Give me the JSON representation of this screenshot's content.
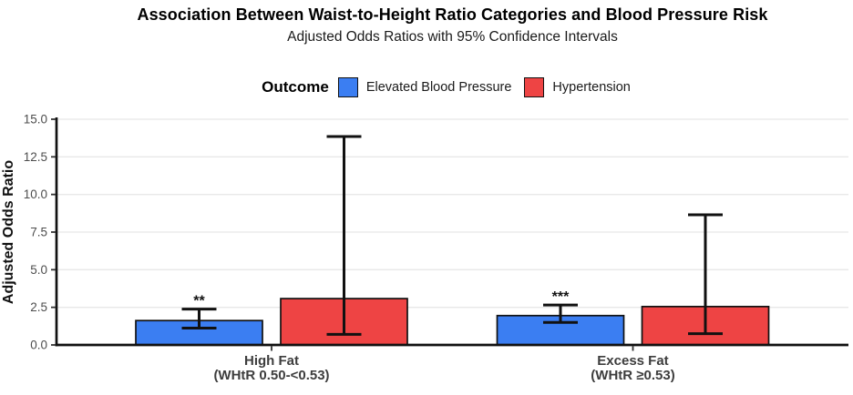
{
  "chart_data": {
    "type": "bar",
    "title": "Association Between Waist-to-Height Ratio Categories and Blood Pressure Risk",
    "subtitle": "Adjusted Odds Ratios with 95% Confidence Intervals",
    "ylabel": "Adjusted Odds Ratio",
    "xlabel": "",
    "ylim": [
      0,
      15
    ],
    "yticks": [
      0,
      2.5,
      5,
      7.5,
      10,
      12.5,
      15
    ],
    "grid": true,
    "legend_title": "Outcome",
    "legend_position": "top",
    "categories": [
      {
        "label": "High Fat",
        "sublabel": "(WHtR 0.50-<0.53)"
      },
      {
        "label": "Excess Fat",
        "sublabel": "(WHtR ≥0.53)"
      }
    ],
    "series": [
      {
        "name": "Elevated Blood Pressure",
        "color": "#3b7ef2",
        "values": [
          1.62,
          1.95
        ],
        "ci_low": [
          1.12,
          1.5
        ],
        "ci_high": [
          2.38,
          2.65
        ],
        "significance": [
          "**",
          "***"
        ]
      },
      {
        "name": "Hypertension",
        "color": "#ee4444",
        "values": [
          3.08,
          2.55
        ],
        "ci_low": [
          0.7,
          0.75
        ],
        "ci_high": [
          13.85,
          8.65
        ],
        "significance": [
          "",
          ""
        ]
      }
    ]
  },
  "colors": {
    "axis": "#111111",
    "grid_line": "#e8e8e8",
    "tick_mark": "#333333",
    "y_tick_label": "#4d4d4d",
    "category_label": "#3d3d3d",
    "error_bar": "#111111",
    "bar_border": "#111111"
  }
}
